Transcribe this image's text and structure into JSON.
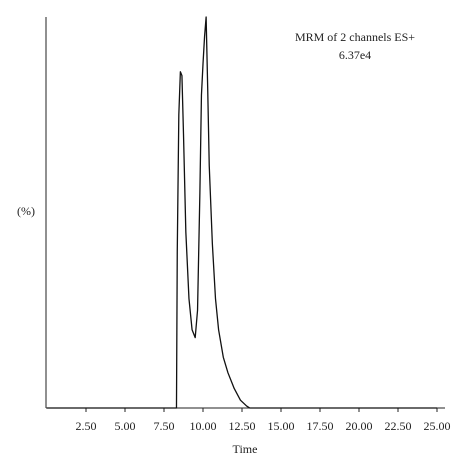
{
  "chart_data": {
    "type": "line",
    "annotations": [
      "MRM of 2 channels ES+",
      "6.37e4"
    ],
    "x_label": "Time",
    "y_label": "(%)",
    "x": [
      0,
      8.2,
      8.3,
      8.35,
      8.45,
      8.55,
      8.65,
      8.75,
      8.9,
      9.1,
      9.3,
      9.5,
      9.65,
      9.8,
      9.9,
      10.0,
      10.1,
      10.2,
      10.3,
      10.4,
      10.6,
      10.8,
      11.0,
      11.3,
      11.6,
      12.0,
      12.4,
      12.8,
      13.0,
      25
    ],
    "series": [
      {
        "color": "#111111",
        "values": [
          0,
          0,
          0,
          40,
          75,
          86,
          85,
          70,
          45,
          28,
          20,
          18,
          25,
          55,
          80,
          88,
          95,
          100,
          82,
          62,
          42,
          28,
          20,
          13,
          9,
          5,
          2,
          0.5,
          0,
          0
        ]
      }
    ],
    "xlim": [
      0,
      25
    ],
    "ylim": [
      0,
      100
    ],
    "xticks": [
      {
        "value": 2.5,
        "label": "2.50"
      },
      {
        "value": 5,
        "label": "5.00"
      },
      {
        "value": 7.5,
        "label": "7.50"
      },
      {
        "value": 10,
        "label": "10.00"
      },
      {
        "value": 12.5,
        "label": "12.50"
      },
      {
        "value": 15,
        "label": "15.00"
      },
      {
        "value": 17.5,
        "label": "17.50"
      },
      {
        "value": 20,
        "label": "20.00"
      },
      {
        "value": 22.5,
        "label": "22.50"
      },
      {
        "value": 25,
        "label": "25.00"
      }
    ]
  }
}
